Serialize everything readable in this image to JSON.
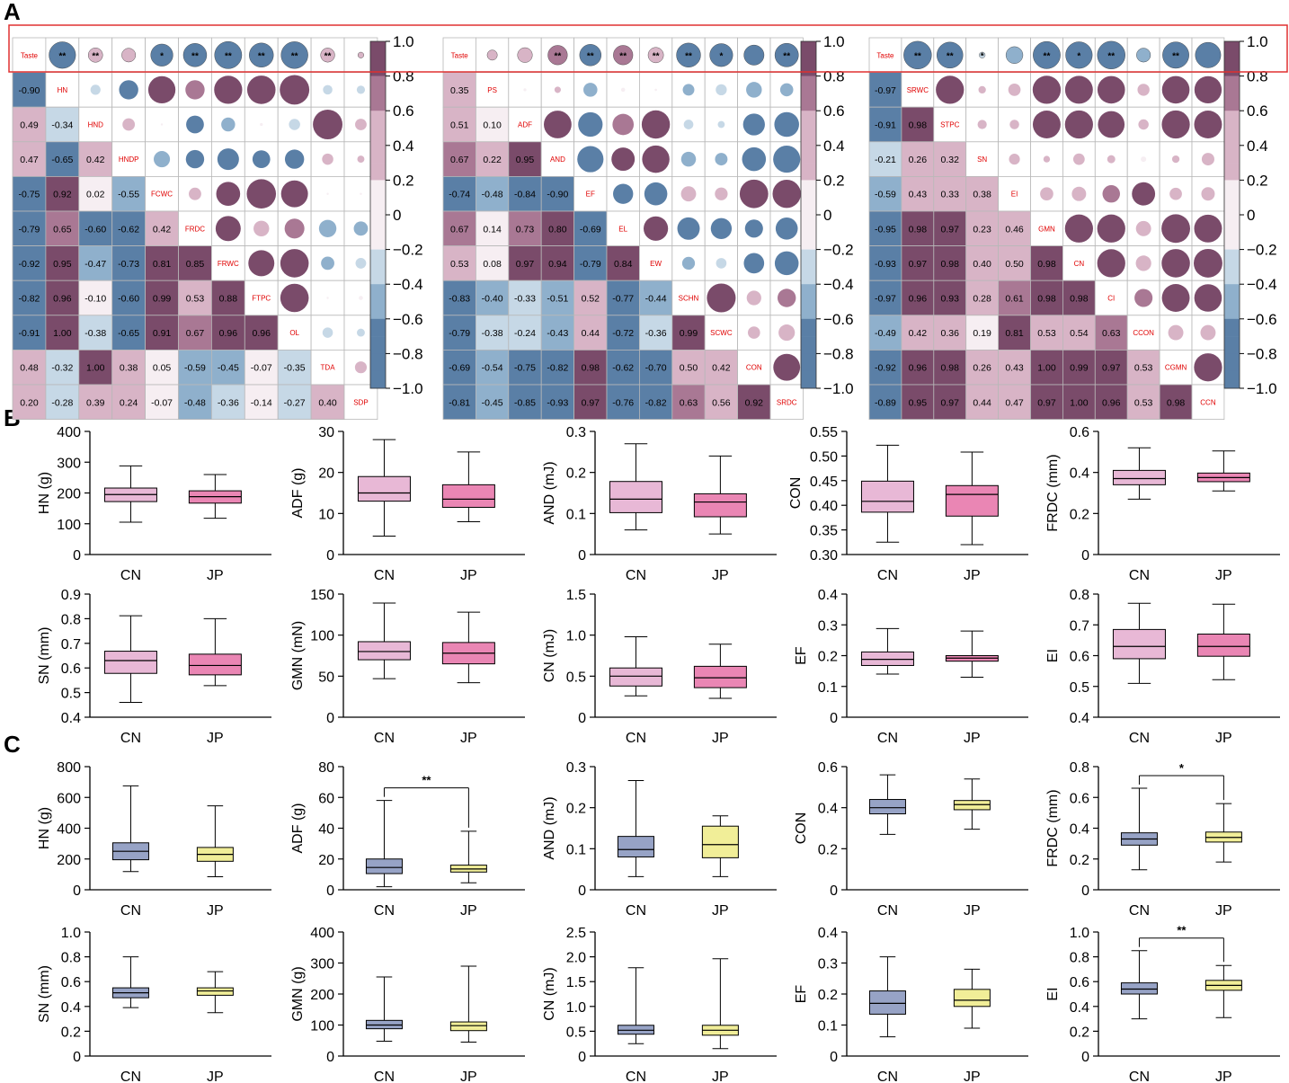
{
  "panel_labels": [
    "A",
    "B",
    "C"
  ],
  "colors": {
    "neg_strong": "#5a7fa6",
    "neg_mid": "#8fb0cc",
    "neg_light": "#c6d8e6",
    "pos_light": "#d8b4c6",
    "pos_mid": "#a97894",
    "pos_strong": "#7a4b6a",
    "near_zero": "#f6eef2",
    "label_red": "#e00000",
    "highlight": "#e03030",
    "box_cn_B": "#e8b8d6",
    "box_jp_B": "#ea86b4",
    "box_cn_C": "#97a3c6",
    "box_jp_C": "#f1ee98"
  },
  "colorbar_ticks": [
    "1.0",
    "0.8",
    "0.6",
    "0.4",
    "0.2",
    "0",
    "−0.2",
    "−0.4",
    "−0.6",
    "−0.8",
    "−1.0"
  ],
  "chart_data": [
    {
      "type": "heatmap",
      "id": "corr1",
      "variables": [
        "Taste",
        "HN",
        "HND",
        "HNDP",
        "FCWC",
        "FRDC",
        "FRWC",
        "FTPC",
        "OL",
        "TDA",
        "SDP"
      ],
      "lower_values": [
        [
          -0.9
        ],
        [
          0.49,
          -0.34
        ],
        [
          0.47,
          -0.65,
          0.42
        ],
        [
          -0.75,
          0.92,
          0.02,
          -0.55
        ],
        [
          -0.79,
          0.65,
          -0.6,
          -0.62,
          0.42
        ],
        [
          -0.92,
          0.95,
          -0.47,
          -0.73,
          0.81,
          0.85
        ],
        [
          -0.82,
          0.96,
          -0.1,
          -0.6,
          0.99,
          0.53,
          0.88
        ],
        [
          -0.91,
          1.0,
          -0.38,
          -0.65,
          0.91,
          0.67,
          0.96,
          0.96
        ],
        [
          0.48,
          -0.32,
          1.0,
          0.38,
          0.05,
          -0.59,
          -0.45,
          -0.07,
          -0.35
        ],
        [
          0.2,
          -0.28,
          0.39,
          0.24,
          -0.07,
          -0.48,
          -0.36,
          -0.14,
          -0.27,
          0.4
        ]
      ],
      "taste_significance": [
        "**",
        "**",
        "",
        "*",
        "**",
        "**",
        "**",
        "**",
        "**",
        ""
      ]
    },
    {
      "type": "heatmap",
      "id": "corr2",
      "variables": [
        "Taste",
        "PS",
        "ADF",
        "AND",
        "EF",
        "EL",
        "EW",
        "SCHN",
        "SCWC",
        "CON",
        "SRDC"
      ],
      "lower_values": [
        [
          0.35
        ],
        [
          0.51,
          0.1
        ],
        [
          0.67,
          0.22,
          0.95
        ],
        [
          -0.74,
          -0.48,
          -0.84,
          -0.9
        ],
        [
          0.67,
          0.14,
          0.73,
          0.8,
          -0.69
        ],
        [
          0.53,
          0.08,
          0.97,
          0.94,
          -0.79,
          0.84
        ],
        [
          -0.83,
          -0.4,
          -0.33,
          -0.51,
          0.52,
          -0.77,
          -0.44
        ],
        [
          -0.79,
          -0.38,
          -0.24,
          -0.43,
          0.44,
          -0.72,
          -0.36,
          0.99
        ],
        [
          -0.69,
          -0.54,
          -0.75,
          -0.82,
          0.98,
          -0.62,
          -0.7,
          0.5,
          0.42
        ],
        [
          -0.81,
          -0.45,
          -0.85,
          -0.93,
          0.97,
          -0.76,
          -0.82,
          0.63,
          0.56,
          0.92
        ]
      ],
      "taste_significance": [
        "",
        "",
        "**",
        "**",
        "**",
        "**",
        "**",
        "*",
        "",
        "**"
      ]
    },
    {
      "type": "heatmap",
      "id": "corr3",
      "variables": [
        "Taste",
        "SRWC",
        "STPC",
        "SN",
        "EI",
        "GMN",
        "CN",
        "CI",
        "CCON",
        "CGMN",
        "CCN"
      ],
      "lower_values": [
        [
          -0.97
        ],
        [
          -0.91,
          0.98
        ],
        [
          -0.21,
          0.26,
          0.32
        ],
        [
          -0.59,
          0.43,
          0.33,
          0.38
        ],
        [
          -0.95,
          0.98,
          0.97,
          0.23,
          0.46
        ],
        [
          -0.93,
          0.97,
          0.98,
          0.4,
          0.5,
          0.98
        ],
        [
          -0.97,
          0.96,
          0.93,
          0.28,
          0.61,
          0.98,
          0.98
        ],
        [
          -0.49,
          0.42,
          0.36,
          0.19,
          0.81,
          0.53,
          0.54,
          0.63
        ],
        [
          -0.92,
          0.96,
          0.98,
          0.26,
          0.43,
          1.0,
          0.99,
          0.97,
          0.53
        ],
        [
          -0.89,
          0.95,
          0.97,
          0.44,
          0.47,
          0.97,
          1.0,
          0.96,
          0.53,
          0.98
        ]
      ],
      "taste_significance": [
        "**",
        "**",
        "*",
        "",
        "**",
        "*",
        "**",
        "",
        "**",
        ""
      ]
    },
    {
      "type": "box",
      "id": "B1",
      "ylabel": "HN (g)",
      "ylim": [
        0,
        400
      ],
      "ticks": [
        "0",
        "100",
        "200",
        "300",
        "400"
      ],
      "categories": [
        "CN",
        "JP"
      ],
      "boxes": [
        {
          "min": 105,
          "q1": 172,
          "median": 195,
          "q3": 216,
          "max": 288
        },
        {
          "min": 118,
          "q1": 167,
          "median": 188,
          "q3": 207,
          "max": 260
        }
      ]
    },
    {
      "type": "box",
      "id": "B2",
      "ylabel": "ADF (g)",
      "ylim": [
        0,
        30
      ],
      "ticks": [
        "0",
        "10",
        "20",
        "30"
      ],
      "categories": [
        "CN",
        "JP"
      ],
      "boxes": [
        {
          "min": 4.5,
          "q1": 13,
          "median": 15,
          "q3": 19,
          "max": 28
        },
        {
          "min": 8,
          "q1": 11.5,
          "median": 13.5,
          "q3": 17,
          "max": 25
        }
      ]
    },
    {
      "type": "box",
      "id": "B3",
      "ylabel": "AND (mJ)",
      "ylim": [
        0,
        0.3
      ],
      "ticks": [
        "0",
        "0.1",
        "0.2",
        "0.3"
      ],
      "categories": [
        "CN",
        "JP"
      ],
      "boxes": [
        {
          "min": 0.06,
          "q1": 0.102,
          "median": 0.135,
          "q3": 0.178,
          "max": 0.27
        },
        {
          "min": 0.05,
          "q1": 0.092,
          "median": 0.128,
          "q3": 0.148,
          "max": 0.24
        }
      ]
    },
    {
      "type": "box",
      "id": "B4",
      "ylabel": "CON",
      "ylim": [
        0.3,
        0.55
      ],
      "ticks": [
        "0.30",
        "0.35",
        "0.40",
        "0.45",
        "0.50",
        "0.55"
      ],
      "categories": [
        "CN",
        "JP"
      ],
      "boxes": [
        {
          "min": 0.325,
          "q1": 0.386,
          "median": 0.408,
          "q3": 0.449,
          "max": 0.522
        },
        {
          "min": 0.32,
          "q1": 0.378,
          "median": 0.422,
          "q3": 0.44,
          "max": 0.508
        }
      ]
    },
    {
      "type": "box",
      "id": "B5",
      "ylabel": "FRDC (mm)",
      "ylim": [
        0,
        0.6
      ],
      "ticks": [
        "0",
        "0.2",
        "0.4",
        "0.6"
      ],
      "categories": [
        "CN",
        "JP"
      ],
      "boxes": [
        {
          "min": 0.27,
          "q1": 0.34,
          "median": 0.37,
          "q3": 0.41,
          "max": 0.52
        },
        {
          "min": 0.31,
          "q1": 0.355,
          "median": 0.375,
          "q3": 0.397,
          "max": 0.505
        }
      ]
    },
    {
      "type": "box",
      "id": "B6",
      "ylabel": "SN (mm)",
      "ylim": [
        0.4,
        0.9
      ],
      "ticks": [
        "0.4",
        "0.5",
        "0.6",
        "0.7",
        "0.8",
        "0.9"
      ],
      "categories": [
        "CN",
        "JP"
      ],
      "boxes": [
        {
          "min": 0.46,
          "q1": 0.578,
          "median": 0.63,
          "q3": 0.668,
          "max": 0.812
        },
        {
          "min": 0.528,
          "q1": 0.572,
          "median": 0.61,
          "q3": 0.656,
          "max": 0.8
        }
      ]
    },
    {
      "type": "box",
      "id": "B7",
      "ylabel": "GMN (mN)",
      "ylim": [
        0,
        150
      ],
      "ticks": [
        "0",
        "50",
        "100",
        "150"
      ],
      "categories": [
        "CN",
        "JP"
      ],
      "boxes": [
        {
          "min": 47,
          "q1": 70,
          "median": 80,
          "q3": 92,
          "max": 139
        },
        {
          "min": 42,
          "q1": 65,
          "median": 78,
          "q3": 91,
          "max": 128
        }
      ]
    },
    {
      "type": "box",
      "id": "B8",
      "ylabel": "CN (mJ)",
      "ylim": [
        0,
        1.5
      ],
      "ticks": [
        "0",
        "0.5",
        "1.0",
        "1.5"
      ],
      "categories": [
        "CN",
        "JP"
      ],
      "boxes": [
        {
          "min": 0.26,
          "q1": 0.38,
          "median": 0.5,
          "q3": 0.6,
          "max": 0.98
        },
        {
          "min": 0.23,
          "q1": 0.36,
          "median": 0.48,
          "q3": 0.62,
          "max": 0.89
        }
      ]
    },
    {
      "type": "box",
      "id": "B9",
      "ylabel": "EF",
      "ylim": [
        0,
        0.4
      ],
      "ticks": [
        "0",
        "0.1",
        "0.2",
        "0.3",
        "0.4"
      ],
      "categories": [
        "CN",
        "JP"
      ],
      "boxes": [
        {
          "min": 0.14,
          "q1": 0.168,
          "median": 0.188,
          "q3": 0.212,
          "max": 0.288
        },
        {
          "min": 0.13,
          "q1": 0.182,
          "median": 0.192,
          "q3": 0.2,
          "max": 0.28
        }
      ]
    },
    {
      "type": "box",
      "id": "B10",
      "ylabel": "EI",
      "ylim": [
        0.4,
        0.8
      ],
      "ticks": [
        "0.4",
        "0.5",
        "0.6",
        "0.7",
        "0.8"
      ],
      "categories": [
        "CN",
        "JP"
      ],
      "boxes": [
        {
          "min": 0.51,
          "q1": 0.59,
          "median": 0.63,
          "q3": 0.685,
          "max": 0.77
        },
        {
          "min": 0.522,
          "q1": 0.598,
          "median": 0.63,
          "q3": 0.67,
          "max": 0.767
        }
      ]
    },
    {
      "type": "box",
      "id": "C1",
      "ylabel": "HN (g)",
      "ylim": [
        0,
        800
      ],
      "ticks": [
        "0",
        "200",
        "400",
        "600",
        "800"
      ],
      "categories": [
        "CN",
        "JP"
      ],
      "boxes": [
        {
          "min": 118,
          "q1": 195,
          "median": 250,
          "q3": 305,
          "max": 675
        },
        {
          "min": 85,
          "q1": 185,
          "median": 230,
          "q3": 275,
          "max": 545
        }
      ]
    },
    {
      "type": "box",
      "id": "C2",
      "ylabel": "ADF (g)",
      "ylim": [
        0,
        80
      ],
      "ticks": [
        "0",
        "20",
        "40",
        "60",
        "80"
      ],
      "categories": [
        "CN",
        "JP"
      ],
      "significance": "**",
      "boxes": [
        {
          "min": 2,
          "q1": 10.5,
          "median": 14.5,
          "q3": 20,
          "max": 58
        },
        {
          "min": 4.5,
          "q1": 11.5,
          "median": 13.5,
          "q3": 16,
          "max": 38
        }
      ]
    },
    {
      "type": "box",
      "id": "C3",
      "ylabel": "AND (mJ)",
      "ylim": [
        0,
        0.3
      ],
      "ticks": [
        "0",
        "0.1",
        "0.2",
        "0.3"
      ],
      "categories": [
        "CN",
        "JP"
      ],
      "boxes": [
        {
          "min": 0.032,
          "q1": 0.08,
          "median": 0.098,
          "q3": 0.13,
          "max": 0.266
        },
        {
          "min": 0.032,
          "q1": 0.078,
          "median": 0.11,
          "q3": 0.155,
          "max": 0.18
        }
      ]
    },
    {
      "type": "box",
      "id": "C4",
      "ylabel": "CON",
      "ylim": [
        0,
        0.6
      ],
      "ticks": [
        "0",
        "0.2",
        "0.4",
        "0.6"
      ],
      "categories": [
        "CN",
        "JP"
      ],
      "boxes": [
        {
          "min": 0.27,
          "q1": 0.37,
          "median": 0.4,
          "q3": 0.44,
          "max": 0.56
        },
        {
          "min": 0.295,
          "q1": 0.39,
          "median": 0.415,
          "q3": 0.435,
          "max": 0.54
        }
      ]
    },
    {
      "type": "box",
      "id": "C5",
      "ylabel": "FRDC (mm)",
      "ylim": [
        0,
        0.8
      ],
      "ticks": [
        "0",
        "0.2",
        "0.4",
        "0.6",
        "0.8"
      ],
      "categories": [
        "CN",
        "JP"
      ],
      "significance": "*",
      "boxes": [
        {
          "min": 0.13,
          "q1": 0.29,
          "median": 0.33,
          "q3": 0.37,
          "max": 0.66
        },
        {
          "min": 0.18,
          "q1": 0.31,
          "median": 0.34,
          "q3": 0.375,
          "max": 0.56
        }
      ]
    },
    {
      "type": "box",
      "id": "C6",
      "ylabel": "SN (mm)",
      "ylim": [
        0,
        1.0
      ],
      "ticks": [
        "0",
        "0.2",
        "0.4",
        "0.6",
        "0.8",
        "1.0"
      ],
      "categories": [
        "CN",
        "JP"
      ],
      "boxes": [
        {
          "min": 0.39,
          "q1": 0.47,
          "median": 0.51,
          "q3": 0.55,
          "max": 0.8
        },
        {
          "min": 0.35,
          "q1": 0.49,
          "median": 0.525,
          "q3": 0.55,
          "max": 0.68
        }
      ]
    },
    {
      "type": "box",
      "id": "C7",
      "ylabel": "GMN (g)",
      "ylim": [
        0,
        400
      ],
      "ticks": [
        "0",
        "100",
        "200",
        "300",
        "400"
      ],
      "categories": [
        "CN",
        "JP"
      ],
      "boxes": [
        {
          "min": 48,
          "q1": 88,
          "median": 100,
          "q3": 115,
          "max": 255
        },
        {
          "min": 45,
          "q1": 82,
          "median": 98,
          "q3": 110,
          "max": 290
        }
      ]
    },
    {
      "type": "box",
      "id": "C8",
      "ylabel": "CN (mJ)",
      "ylim": [
        0,
        2.5
      ],
      "ticks": [
        "0",
        "0.5",
        "1.0",
        "1.5",
        "2.0",
        "2.5"
      ],
      "categories": [
        "CN",
        "JP"
      ],
      "boxes": [
        {
          "min": 0.25,
          "q1": 0.44,
          "median": 0.52,
          "q3": 0.62,
          "max": 1.78
        },
        {
          "min": 0.15,
          "q1": 0.42,
          "median": 0.52,
          "q3": 0.62,
          "max": 1.96
        }
      ]
    },
    {
      "type": "box",
      "id": "C9",
      "ylabel": "EF",
      "ylim": [
        0,
        0.4
      ],
      "ticks": [
        "0",
        "0.1",
        "0.2",
        "0.3",
        "0.4"
      ],
      "categories": [
        "CN",
        "JP"
      ],
      "boxes": [
        {
          "min": 0.062,
          "q1": 0.135,
          "median": 0.17,
          "q3": 0.21,
          "max": 0.32
        },
        {
          "min": 0.09,
          "q1": 0.16,
          "median": 0.18,
          "q3": 0.215,
          "max": 0.28
        }
      ]
    },
    {
      "type": "box",
      "id": "C10",
      "ylabel": "EI",
      "ylim": [
        0,
        1.0
      ],
      "ticks": [
        "0",
        "0.2",
        "0.4",
        "0.6",
        "0.8",
        "1.0"
      ],
      "categories": [
        "CN",
        "JP"
      ],
      "significance": "**",
      "boxes": [
        {
          "min": 0.3,
          "q1": 0.5,
          "median": 0.54,
          "q3": 0.59,
          "max": 0.85
        },
        {
          "min": 0.31,
          "q1": 0.53,
          "median": 0.57,
          "q3": 0.61,
          "max": 0.73
        }
      ]
    }
  ]
}
